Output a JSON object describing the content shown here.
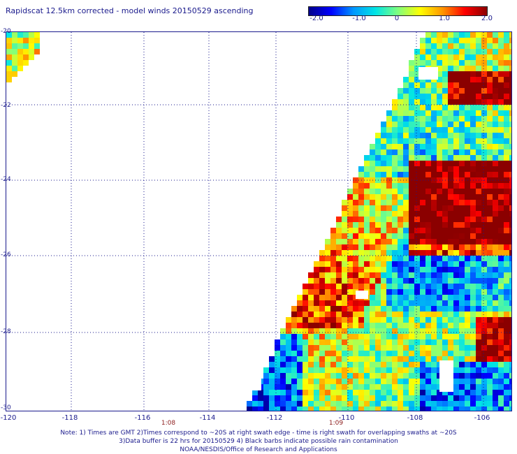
{
  "title": "Rapidscat 12.5km corrected - model winds 20150529 ascending",
  "colorbar": {
    "ticks": [
      "-2.0",
      "-1.0",
      "0",
      "1.0",
      "2.0"
    ],
    "stops": [
      "#00008b",
      "#0000ff",
      "#0096ff",
      "#00e5e5",
      "#7fff7f",
      "#ffff00",
      "#ff9600",
      "#ff0000",
      "#8b0000"
    ]
  },
  "map": {
    "lon_range": [
      -120,
      -104.5
    ],
    "lat_range": [
      -20,
      -30
    ],
    "x_ticks": [
      "-120",
      "-118",
      "-116",
      "-114",
      "-112",
      "-110",
      "-108",
      "-106"
    ],
    "y_ticks": [
      "-20",
      "-22",
      "-24",
      "-26",
      "-28",
      "-30"
    ],
    "times": [
      "1:08",
      "1:09"
    ],
    "grid": true
  },
  "notes": [
    "Note: 1) Times are GMT 2)Times correspond to ~20S at right swath edge - time is right swath for overlapping swaths at ~20S",
    "3)Data buffer is 22 hrs for 20150529 4) Black barbs indicate possible rain contamination",
    "NOAA/NESDIS/Office of Research and Applications"
  ]
}
